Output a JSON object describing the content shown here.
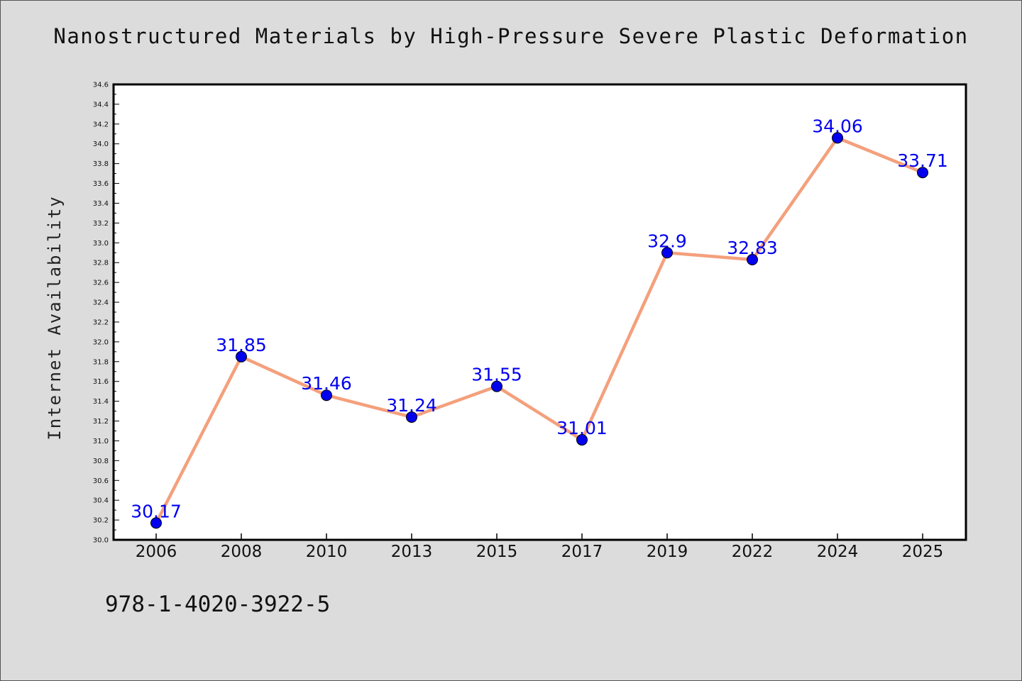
{
  "chart_data": {
    "type": "line",
    "title": "Nanostructured Materials by High-Pressure Severe Plastic Deformation",
    "xlabel": "",
    "ylabel": "Internet Availability",
    "categories": [
      "2006",
      "2008",
      "2010",
      "2013",
      "2015",
      "2017",
      "2019",
      "2022",
      "2024",
      "2025"
    ],
    "values": [
      30.17,
      31.85,
      31.46,
      31.24,
      31.55,
      31.01,
      32.9,
      32.83,
      34.06,
      33.71
    ],
    "data_labels": [
      "30.17",
      "31.85",
      "31.46",
      "31.24",
      "31.55",
      "31.01",
      "32.9",
      "32.83",
      "34.06",
      "33.71"
    ],
    "ylim": [
      30.0,
      34.6
    ],
    "yticks": [
      "30.0",
      "30.2",
      "30.4",
      "30.6",
      "30.8",
      "31.0",
      "31.2",
      "31.4",
      "31.6",
      "31.8",
      "32.0",
      "32.2",
      "32.4",
      "32.6",
      "32.8",
      "33.0",
      "33.2",
      "33.4",
      "33.6",
      "33.8",
      "34.0",
      "34.2",
      "34.4",
      "34.6"
    ],
    "grid": false,
    "line_color": "#f4a07c",
    "marker_color": "#0000ee",
    "label_color": "#0000ee"
  },
  "footer_text": "978-1-4020-3922-5"
}
